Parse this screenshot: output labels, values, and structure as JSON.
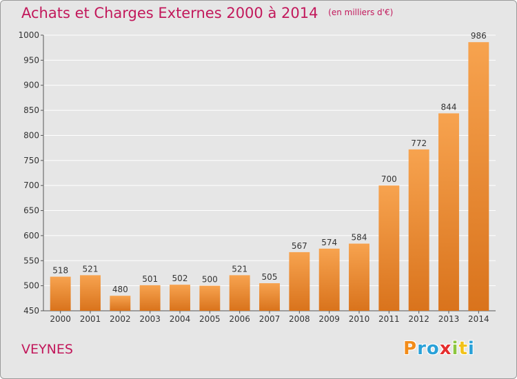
{
  "header": {
    "title": "Achats et Charges Externes 2000 à 2014",
    "unit": "(en milliers d'€)"
  },
  "footer": {
    "city": "VEYNES",
    "logo": [
      "P",
      "r",
      "o",
      "x",
      "i",
      "t",
      "i"
    ],
    "logo_colors": [
      "#f28c1a",
      "#2aa1d8",
      "#2aa1d8",
      "#e52e2e",
      "#8cc63f",
      "#f2c21a",
      "#2aa1d8"
    ]
  },
  "colors": {
    "title": "#c2185b",
    "bar_top": "#f7a34f",
    "bar_bottom": "#d9731c",
    "grid": "#ffffff",
    "background": "#e6e6e6"
  },
  "chart_data": {
    "type": "bar",
    "categories": [
      "2000",
      "2001",
      "2002",
      "2003",
      "2004",
      "2005",
      "2006",
      "2007",
      "2008",
      "2009",
      "2010",
      "2011",
      "2012",
      "2013",
      "2014"
    ],
    "values": [
      518,
      521,
      480,
      501,
      502,
      500,
      521,
      505,
      567,
      574,
      584,
      700,
      772,
      844,
      986
    ],
    "ylim": [
      450,
      1000
    ],
    "yticks": [
      450,
      500,
      550,
      600,
      650,
      700,
      750,
      800,
      850,
      900,
      950,
      1000
    ],
    "grid": true,
    "xlabel": "",
    "ylabel": ""
  }
}
